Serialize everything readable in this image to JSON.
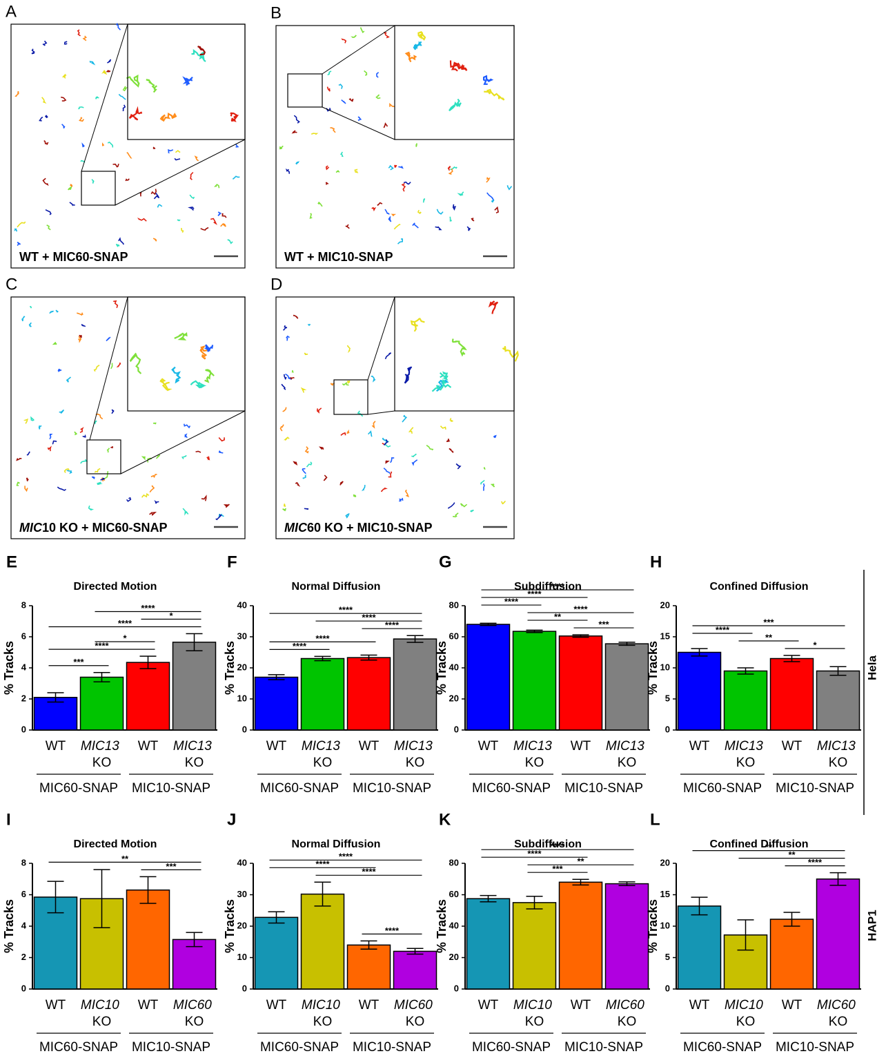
{
  "image_panels": [
    {
      "panel": "A",
      "label": [
        {
          "text": "WT + MIC60-SNAP"
        }
      ]
    },
    {
      "panel": "B",
      "label": [
        {
          "text": "WT + MIC10-SNAP"
        }
      ]
    },
    {
      "panel": "C",
      "label": [
        {
          "text": "MIC",
          "italic": true
        },
        {
          "text": "10 KO + MIC60-SNAP"
        }
      ]
    },
    {
      "panel": "D",
      "label": [
        {
          "text": "MIC",
          "italic": true
        },
        {
          "text": "60 KO + MIC10-SNAP"
        }
      ]
    }
  ],
  "row_labels": [
    "Hela",
    "HAP1"
  ],
  "chart_data": [
    {
      "type": "bar",
      "panel": "E",
      "title": "Directed Motion",
      "ylabel": "% Tracks",
      "categories": [
        "WT",
        "MIC13 KO",
        "WT",
        "MIC13 KO"
      ],
      "groups": [
        "MIC60-SNAP",
        "MIC10-SNAP"
      ],
      "values": [
        2.1,
        3.4,
        4.35,
        5.65
      ],
      "errors": [
        0.3,
        0.3,
        0.4,
        0.55
      ],
      "colors": [
        "#0000ff",
        "#00c400",
        "#ff0000",
        "#808080"
      ],
      "ylim": [
        0,
        8
      ],
      "yticks": [
        0,
        2,
        4,
        6,
        8
      ],
      "significance": [
        {
          "label": "***",
          "from": 0,
          "to": 1
        },
        {
          "label": "****",
          "from": 0,
          "to": 2
        },
        {
          "label": "*",
          "from": 1,
          "to": 2
        },
        {
          "label": "****",
          "from": 0,
          "to": 3
        },
        {
          "label": "*",
          "from": 2,
          "to": 3
        },
        {
          "label": "****",
          "from": 1,
          "to": 3
        }
      ]
    },
    {
      "type": "bar",
      "panel": "F",
      "title": "Normal Diffusion",
      "ylabel": "% Tracks",
      "categories": [
        "WT",
        "MIC13 KO",
        "WT",
        "MIC13 KO"
      ],
      "groups": [
        "MIC60-SNAP",
        "MIC10-SNAP"
      ],
      "values": [
        17,
        23,
        23.3,
        29.3
      ],
      "errors": [
        0.8,
        0.7,
        0.8,
        1.1
      ],
      "colors": [
        "#0000ff",
        "#00c400",
        "#ff0000",
        "#808080"
      ],
      "ylim": [
        0,
        40
      ],
      "yticks": [
        0,
        10,
        20,
        30,
        40
      ],
      "significance": [
        {
          "label": "****",
          "from": 0,
          "to": 1
        },
        {
          "label": "****",
          "from": 0,
          "to": 2
        },
        {
          "label": "****",
          "from": 2,
          "to": 3
        },
        {
          "label": "****",
          "from": 1,
          "to": 3
        },
        {
          "label": "****",
          "from": 0,
          "to": 3
        }
      ]
    },
    {
      "type": "bar",
      "panel": "G",
      "title": "Subdiffusion",
      "ylabel": "% Tracks",
      "categories": [
        "WT",
        "MIC13 KO",
        "WT",
        "MIC13 KO"
      ],
      "groups": [
        "MIC60-SNAP",
        "MIC10-SNAP"
      ],
      "values": [
        68,
        63.5,
        60.5,
        55.5
      ],
      "errors": [
        0.7,
        0.8,
        0.8,
        1
      ],
      "colors": [
        "#0000ff",
        "#00c400",
        "#ff0000",
        "#808080"
      ],
      "ylim": [
        0,
        80
      ],
      "yticks": [
        0,
        20,
        40,
        60,
        80
      ],
      "significance": [
        {
          "label": "***",
          "from": 2,
          "to": 3
        },
        {
          "label": "**",
          "from": 1,
          "to": 2
        },
        {
          "label": "****",
          "from": 1,
          "to": 3
        },
        {
          "label": "****",
          "from": 0,
          "to": 1
        },
        {
          "label": "****",
          "from": 0,
          "to": 2
        },
        {
          "label": "****",
          "from": 0,
          "to": 3
        }
      ]
    },
    {
      "type": "bar",
      "panel": "H",
      "title": "Confined Diffusion",
      "ylabel": "% Tracks",
      "categories": [
        "WT",
        "MIC13 KO",
        "WT",
        "MIC13 KO"
      ],
      "groups": [
        "MIC60-SNAP",
        "MIC10-SNAP"
      ],
      "values": [
        12.5,
        9.5,
        11.5,
        9.5
      ],
      "errors": [
        0.6,
        0.5,
        0.5,
        0.7
      ],
      "colors": [
        "#0000ff",
        "#00c400",
        "#ff0000",
        "#808080"
      ],
      "ylim": [
        0,
        20
      ],
      "yticks": [
        0,
        5,
        10,
        15,
        20
      ],
      "significance": [
        {
          "label": "*",
          "from": 2,
          "to": 3
        },
        {
          "label": "**",
          "from": 1,
          "to": 2
        },
        {
          "label": "****",
          "from": 0,
          "to": 1
        },
        {
          "label": "***",
          "from": 0,
          "to": 3
        }
      ]
    },
    {
      "type": "bar",
      "panel": "I",
      "title": "Directed Motion",
      "ylabel": "% Tracks",
      "categories": [
        "WT",
        "MIC10 KO",
        "WT",
        "MIC60 KO"
      ],
      "groups": [
        "MIC60-SNAP",
        "MIC10-SNAP"
      ],
      "values": [
        5.85,
        5.75,
        6.3,
        3.15
      ],
      "errors": [
        1,
        1.85,
        0.85,
        0.45
      ],
      "colors": [
        "#1596b4",
        "#c8c000",
        "#ff6600",
        "#b000e0"
      ],
      "ylim": [
        0,
        8
      ],
      "yticks": [
        0,
        2,
        4,
        6,
        8
      ],
      "significance": [
        {
          "label": "***",
          "from": 2,
          "to": 3
        },
        {
          "label": "**",
          "from": 0,
          "to": 3
        }
      ]
    },
    {
      "type": "bar",
      "panel": "J",
      "title": "Normal Diffusion",
      "ylabel": "% Tracks",
      "categories": [
        "WT",
        "MIC10 KO",
        "WT",
        "MIC60 KO"
      ],
      "groups": [
        "MIC60-SNAP",
        "MIC10-SNAP"
      ],
      "values": [
        22.8,
        30.2,
        14,
        12
      ],
      "errors": [
        1.8,
        3.8,
        1.3,
        0.9
      ],
      "colors": [
        "#1596b4",
        "#c8c000",
        "#ff6600",
        "#b000e0"
      ],
      "ylim": [
        0,
        40
      ],
      "yticks": [
        0,
        10,
        20,
        30,
        40
      ],
      "significance": [
        {
          "label": "****",
          "from": 2,
          "to": 3
        },
        {
          "label": "****",
          "from": 1,
          "to": 3
        },
        {
          "label": "****",
          "from": 0,
          "to": 2
        },
        {
          "label": "****",
          "from": 0,
          "to": 3
        }
      ]
    },
    {
      "type": "bar",
      "panel": "K",
      "title": "Subdiffusion",
      "ylabel": "% Tracks",
      "categories": [
        "WT",
        "MIC10 KO",
        "WT",
        "MIC60 KO"
      ],
      "groups": [
        "MIC60-SNAP",
        "MIC10-SNAP"
      ],
      "values": [
        57.5,
        55,
        68,
        67
      ],
      "errors": [
        2,
        4,
        1.8,
        1.2
      ],
      "colors": [
        "#1596b4",
        "#c8c000",
        "#ff6600",
        "#b000e0"
      ],
      "ylim": [
        0,
        80
      ],
      "yticks": [
        0,
        20,
        40,
        60,
        80
      ],
      "significance": [
        {
          "label": "***",
          "from": 1,
          "to": 2
        },
        {
          "label": "**",
          "from": 1,
          "to": 3
        },
        {
          "label": "****",
          "from": 0,
          "to": 2
        },
        {
          "label": "****",
          "from": 0,
          "to": 3
        }
      ]
    },
    {
      "type": "bar",
      "panel": "L",
      "title": "Confined Diffusion",
      "ylabel": "% Tracks",
      "categories": [
        "WT",
        "MIC10 KO",
        "WT",
        "MIC60 KO"
      ],
      "groups": [
        "MIC60-SNAP",
        "MIC10-SNAP"
      ],
      "values": [
        13.2,
        8.6,
        11.1,
        17.5
      ],
      "errors": [
        1.4,
        2.4,
        1.1,
        1.0
      ],
      "colors": [
        "#1596b4",
        "#c8c000",
        "#ff6600",
        "#b000e0"
      ],
      "ylim": [
        0,
        20
      ],
      "yticks": [
        0,
        5,
        10,
        15,
        20
      ],
      "significance": [
        {
          "label": "****",
          "from": 2,
          "to": 3
        },
        {
          "label": "**",
          "from": 1,
          "to": 3
        },
        {
          "label": "**",
          "from": 0,
          "to": 3
        }
      ]
    }
  ]
}
